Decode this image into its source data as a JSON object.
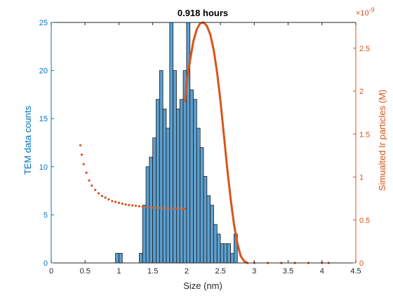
{
  "chart_data": {
    "type": "bar",
    "title": "0.918 hours",
    "xlabel": "Size (nm)",
    "ylabel_left": "TEM data counts",
    "ylabel_right": "Simualted Ir particles (M)",
    "right_exponent_label": "×10",
    "right_exponent_power": "-9",
    "xlim": [
      0,
      4.5
    ],
    "ylim_left": [
      0,
      25
    ],
    "ylim_right": [
      0,
      2.8e-09
    ],
    "x_ticks": [
      "0",
      "0.5",
      "1",
      "1.5",
      "2",
      "2.5",
      "3",
      "3.5",
      "4",
      "4.5"
    ],
    "x_tick_values": [
      0,
      0.5,
      1,
      1.5,
      2,
      2.5,
      3,
      3.5,
      4,
      4.5
    ],
    "y_left_ticks": [
      "0",
      "5",
      "10",
      "15",
      "20",
      "25"
    ],
    "y_left_tick_values": [
      0,
      5,
      10,
      15,
      20,
      25
    ],
    "y_right_ticks": [
      "0",
      "0.5",
      "1",
      "1.5",
      "2",
      "2.5"
    ],
    "y_right_tick_values": [
      0,
      0.5,
      1,
      1.5,
      2,
      2.5
    ],
    "colors": {
      "bar_fill": "#5c9fce",
      "bar_edge": "#1a1a1a",
      "left_axis": "#0072bd",
      "right_axis": "#d95319",
      "series": "#d95319"
    },
    "histogram": {
      "bin_width": 0.05,
      "bins": [
        {
          "x": 0.95,
          "count": 1
        },
        {
          "x": 1.0,
          "count": 1
        },
        {
          "x": 1.3,
          "count": 1
        },
        {
          "x": 1.35,
          "count": 6
        },
        {
          "x": 1.4,
          "count": 10
        },
        {
          "x": 1.45,
          "count": 11
        },
        {
          "x": 1.5,
          "count": 13
        },
        {
          "x": 1.55,
          "count": 17
        },
        {
          "x": 1.6,
          "count": 20
        },
        {
          "x": 1.65,
          "count": 16
        },
        {
          "x": 1.7,
          "count": 14
        },
        {
          "x": 1.75,
          "count": 26
        },
        {
          "x": 1.8,
          "count": 20
        },
        {
          "x": 1.85,
          "count": 16
        },
        {
          "x": 1.9,
          "count": 17
        },
        {
          "x": 1.95,
          "count": 20
        },
        {
          "x": 2.0,
          "count": 25
        },
        {
          "x": 2.05,
          "count": 18
        },
        {
          "x": 2.1,
          "count": 17
        },
        {
          "x": 2.15,
          "count": 14
        },
        {
          "x": 2.2,
          "count": 12
        },
        {
          "x": 2.25,
          "count": 9
        },
        {
          "x": 2.3,
          "count": 7
        },
        {
          "x": 2.35,
          "count": 6
        },
        {
          "x": 2.4,
          "count": 4
        },
        {
          "x": 2.45,
          "count": 3
        },
        {
          "x": 2.5,
          "count": 2
        },
        {
          "x": 2.55,
          "count": 2
        },
        {
          "x": 2.6,
          "count": 2
        },
        {
          "x": 2.65,
          "count": 1
        },
        {
          "x": 2.7,
          "count": 3
        }
      ]
    },
    "series": [
      {
        "style": "dotted",
        "x": [
          0.43,
          0.45,
          0.48,
          0.52,
          0.56,
          0.6,
          0.65,
          0.7,
          0.75,
          0.8,
          0.85,
          0.9,
          0.95,
          1.0,
          1.05,
          1.1,
          1.15,
          1.2,
          1.25,
          1.3,
          1.35,
          1.4,
          1.45,
          1.5,
          1.55,
          1.6,
          1.65,
          1.7,
          1.75,
          1.8,
          1.85,
          1.9,
          1.95,
          1.98
        ],
        "y": [
          1.37e-09,
          1.26e-09,
          1.15e-09,
          1.05e-09,
          9.6e-10,
          9e-10,
          8.5e-10,
          8.1e-10,
          7.8e-10,
          7.6e-10,
          7.4e-10,
          7.2e-10,
          7.1e-10,
          7e-10,
          6.9e-10,
          6.8e-10,
          6.75e-10,
          6.7e-10,
          6.65e-10,
          6.6e-10,
          6.55e-10,
          6.5e-10,
          6.48e-10,
          6.45e-10,
          6.43e-10,
          6.4e-10,
          6.38e-10,
          6.36e-10,
          6.35e-10,
          6.34e-10,
          6.33e-10,
          6.32e-10,
          6.31e-10,
          6.3e-10
        ]
      },
      {
        "style": "line",
        "x": [
          1.98,
          2.0,
          2.05,
          2.1,
          2.15,
          2.2,
          2.25,
          2.3,
          2.35,
          2.4,
          2.45,
          2.5,
          2.55,
          2.6,
          2.65,
          2.7,
          2.75,
          2.8,
          2.85,
          2.9
        ],
        "y": [
          1.88e-09,
          2.1e-09,
          2.35e-09,
          2.58e-09,
          2.72e-09,
          2.79e-09,
          2.8e-09,
          2.76e-09,
          2.66e-09,
          2.48e-09,
          2.22e-09,
          1.89e-09,
          1.5e-09,
          1.1e-09,
          7.5e-10,
          4.5e-10,
          2.3e-10,
          8e-11,
          2e-11,
          0.0
        ]
      },
      {
        "style": "dotted",
        "x": [
          2.9,
          3.0,
          3.2,
          3.4,
          3.6,
          3.8,
          4.0,
          4.1
        ],
        "y": [
          0.0,
          0.0,
          0.0,
          0.0,
          0.0,
          0.0,
          0.0,
          0.0
        ]
      }
    ]
  }
}
